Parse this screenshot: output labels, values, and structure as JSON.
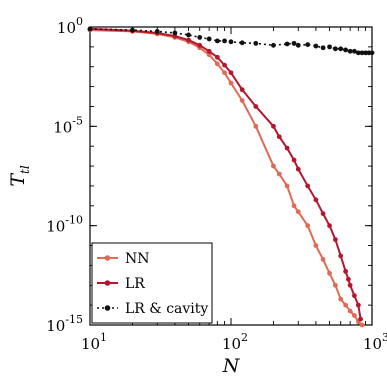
{
  "chart_data": {
    "type": "line",
    "xscale": "log",
    "yscale": "log",
    "xlabel": "N",
    "ylabel": "T_{tl}",
    "xlim": [
      10,
      1000
    ],
    "ylim": [
      1e-15,
      1
    ],
    "grid": false,
    "legend_position": "bottom-left",
    "x_ticks": [
      {
        "value": 10,
        "base": "10",
        "exp": "1"
      },
      {
        "value": 100,
        "base": "10",
        "exp": "2"
      },
      {
        "value": 1000,
        "base": "10",
        "exp": "3"
      }
    ],
    "y_ticks": [
      {
        "value": 1,
        "base": "10",
        "exp": "0"
      },
      {
        "value": 1e-05,
        "base": "10",
        "exp": "-5"
      },
      {
        "value": 1e-10,
        "base": "10",
        "exp": "-10"
      },
      {
        "value": 1e-15,
        "base": "10",
        "exp": "-15"
      }
    ],
    "series": [
      {
        "name": "NN",
        "color": "#e06a55",
        "line_style": "solid",
        "x": [
          10,
          20,
          30,
          40,
          50,
          60,
          70,
          80,
          90,
          100,
          120,
          150,
          200,
          220,
          250,
          280,
          300,
          350,
          400,
          450,
          500,
          550,
          600,
          650,
          700,
          750,
          800,
          850
        ],
        "y": [
          0.7,
          0.6,
          0.45,
          0.3,
          0.18,
          0.09,
          0.04,
          0.014,
          0.005,
          0.0015,
          0.0002,
          1e-05,
          1e-07,
          4e-08,
          1e-08,
          1e-09,
          5e-10,
          1e-10,
          1e-11,
          2e-12,
          4e-13,
          1e-13,
          2e-14,
          1e-14,
          5e-15,
          3e-15,
          1.5e-15,
          1e-15
        ]
      },
      {
        "name": "LR",
        "color": "#b5172f",
        "line_style": "solid",
        "x": [
          10,
          20,
          30,
          40,
          50,
          60,
          70,
          80,
          90,
          100,
          120,
          150,
          200,
          220,
          250,
          280,
          300,
          350,
          400,
          450,
          500,
          550,
          600,
          650,
          680,
          700,
          750,
          800,
          830
        ],
        "y": [
          0.8,
          0.65,
          0.5,
          0.35,
          0.22,
          0.12,
          0.06,
          0.03,
          0.012,
          0.005,
          0.0007,
          0.0001,
          1e-05,
          3e-06,
          8e-07,
          2e-07,
          7e-08,
          1e-08,
          2e-09,
          4e-10,
          1e-10,
          2e-11,
          3e-12,
          5e-13,
          2e-13,
          1e-13,
          3e-14,
          1e-14,
          2e-15
        ]
      },
      {
        "name": "LR & cavity",
        "color": "#111111",
        "line_style": "dotted",
        "x": [
          10,
          20,
          30,
          40,
          50,
          60,
          70,
          80,
          90,
          100,
          120,
          150,
          200,
          250,
          280,
          300,
          350,
          400,
          450,
          500,
          550,
          600,
          650,
          700,
          750,
          800,
          850,
          900,
          950,
          1000
        ],
        "y": [
          0.8,
          0.7,
          0.6,
          0.5,
          0.4,
          0.3,
          0.25,
          0.2,
          0.2,
          0.18,
          0.16,
          0.15,
          0.12,
          0.14,
          0.15,
          0.12,
          0.13,
          0.11,
          0.09,
          0.1,
          0.08,
          0.08,
          0.07,
          0.06,
          0.06,
          0.05,
          0.05,
          0.05,
          0.05,
          0.05
        ]
      }
    ]
  }
}
